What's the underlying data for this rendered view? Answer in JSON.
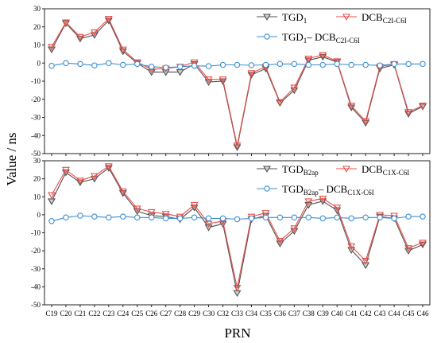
{
  "figure": {
    "xlabel": "PRN",
    "ylabel": "Value  /  ns"
  },
  "colors": {
    "gray_series": "#505050",
    "red_series": "#e8504b",
    "blue_series": "#3f8fd2"
  },
  "chart_data": [
    {
      "type": "line",
      "panel": "top",
      "categories": [
        "C19",
        "C20",
        "C21",
        "C22",
        "C23",
        "C24",
        "C25",
        "C26",
        "C27",
        "C28",
        "C29",
        "C30",
        "C32",
        "C33",
        "C34",
        "C35",
        "C36",
        "C37",
        "C38",
        "C39",
        "C40",
        "C41",
        "C42",
        "C43",
        "C44",
        "C45",
        "C46"
      ],
      "ylim": [
        -50,
        30
      ],
      "yticks": [
        -50,
        -40,
        -30,
        -20,
        -10,
        0,
        10,
        20,
        30
      ],
      "grid": false,
      "legend_position": "top-right",
      "series": [
        {
          "name": "TGD1",
          "label_main": "TGD",
          "label_sub": "1",
          "marker": "triangle-down",
          "color": "#505050",
          "values": [
            7.5,
            22,
            13.5,
            15.5,
            23.5,
            6.5,
            0,
            -5,
            -5,
            -5,
            -0.5,
            -10.5,
            -10,
            -46.5,
            -6.5,
            -3,
            -22,
            -15,
            1.5,
            3.5,
            0.5,
            -24.5,
            -33,
            -3,
            -1,
            -28,
            -24
          ]
        },
        {
          "name": "DCBC2I-C6I",
          "label_main": "DCB",
          "label_sub": "C2I-C6I",
          "marker": "triangle-down-open",
          "color": "#e8504b",
          "values": [
            9,
            22.5,
            14.5,
            17,
            24.5,
            7.5,
            0.5,
            -3.5,
            -3,
            -2,
            0.5,
            -9,
            -9,
            -45.5,
            -5.5,
            -2,
            -21.5,
            -13.5,
            2.5,
            4.5,
            1,
            -23.5,
            -32,
            -2,
            -0.5,
            -27,
            -23.5
          ]
        },
        {
          "name": "TGD1- DCBC2I-C6I",
          "label_main": "TGD",
          "label_sub": "1",
          "label_mid": "– DCB",
          "label_sub2": "C2I-C6I",
          "marker": "circle-open",
          "color": "#3f8fd2",
          "values": [
            -1.5,
            0,
            -0.5,
            -1.3,
            0,
            -1,
            -0.5,
            -2,
            -2.5,
            -2,
            -1.5,
            -1.7,
            -1,
            -1,
            -1.2,
            -1,
            -0.5,
            -0.5,
            -1,
            -1,
            -0.5,
            -1,
            -1,
            -1.3,
            -0.5,
            -0.5,
            -0.5
          ]
        }
      ]
    },
    {
      "type": "line",
      "panel": "bottom",
      "categories": [
        "C19",
        "C20",
        "C21",
        "C22",
        "C23",
        "C24",
        "C25",
        "C26",
        "C27",
        "C28",
        "C29",
        "C30",
        "C32",
        "C33",
        "C34",
        "C35",
        "C36",
        "C37",
        "C38",
        "C39",
        "C40",
        "C41",
        "C42",
        "C43",
        "C44",
        "C45",
        "C46"
      ],
      "ylim": [
        -50,
        30
      ],
      "yticks": [
        -50,
        -40,
        -30,
        -20,
        -10,
        0,
        10,
        20,
        30
      ],
      "grid": false,
      "legend_position": "top-right",
      "series": [
        {
          "name": "TGDB2ap",
          "label_main": "TGD",
          "label_sub": "B2ap",
          "marker": "triangle-down",
          "color": "#505050",
          "values": [
            7.5,
            23.5,
            18,
            20,
            26,
            12,
            2,
            -0.5,
            -1,
            -2.5,
            4,
            -7,
            -5,
            -43.5,
            -2.5,
            -0.5,
            -16,
            -9,
            5.5,
            7.5,
            2.5,
            -19.5,
            -28,
            -1,
            -2,
            -20,
            -16.5
          ]
        },
        {
          "name": "DCBC1X-C6I",
          "label_main": "DCB",
          "label_sub": "C1X-C6I",
          "marker": "triangle-down-open",
          "color": "#e8504b",
          "values": [
            11,
            25,
            19,
            21.5,
            27,
            13,
            3.5,
            1.5,
            0.5,
            -1,
            5.5,
            -5,
            -3.5,
            -40.5,
            -1,
            1,
            -14.5,
            -7.5,
            7.5,
            9,
            4,
            -17.5,
            -25.5,
            0,
            -0.5,
            -18.5,
            -15.5
          ]
        },
        {
          "name": "TGDB2ap- DCBC1X-C6I",
          "label_main": "TGD",
          "label_sub": "B2ap",
          "label_mid": "– DCB",
          "label_sub2": "C1X-C6I",
          "marker": "circle-open",
          "color": "#3f8fd2",
          "values": [
            -3.5,
            -1.5,
            -0.5,
            -1,
            -1.5,
            -1,
            -1.5,
            -1.5,
            -2,
            -2,
            -1.5,
            -2,
            -2,
            -2.5,
            -2,
            -1.5,
            -1.5,
            -1.5,
            -1.5,
            -2,
            -1.5,
            -2,
            -1.5,
            -1.5,
            -2,
            -1,
            -1
          ]
        }
      ]
    }
  ]
}
